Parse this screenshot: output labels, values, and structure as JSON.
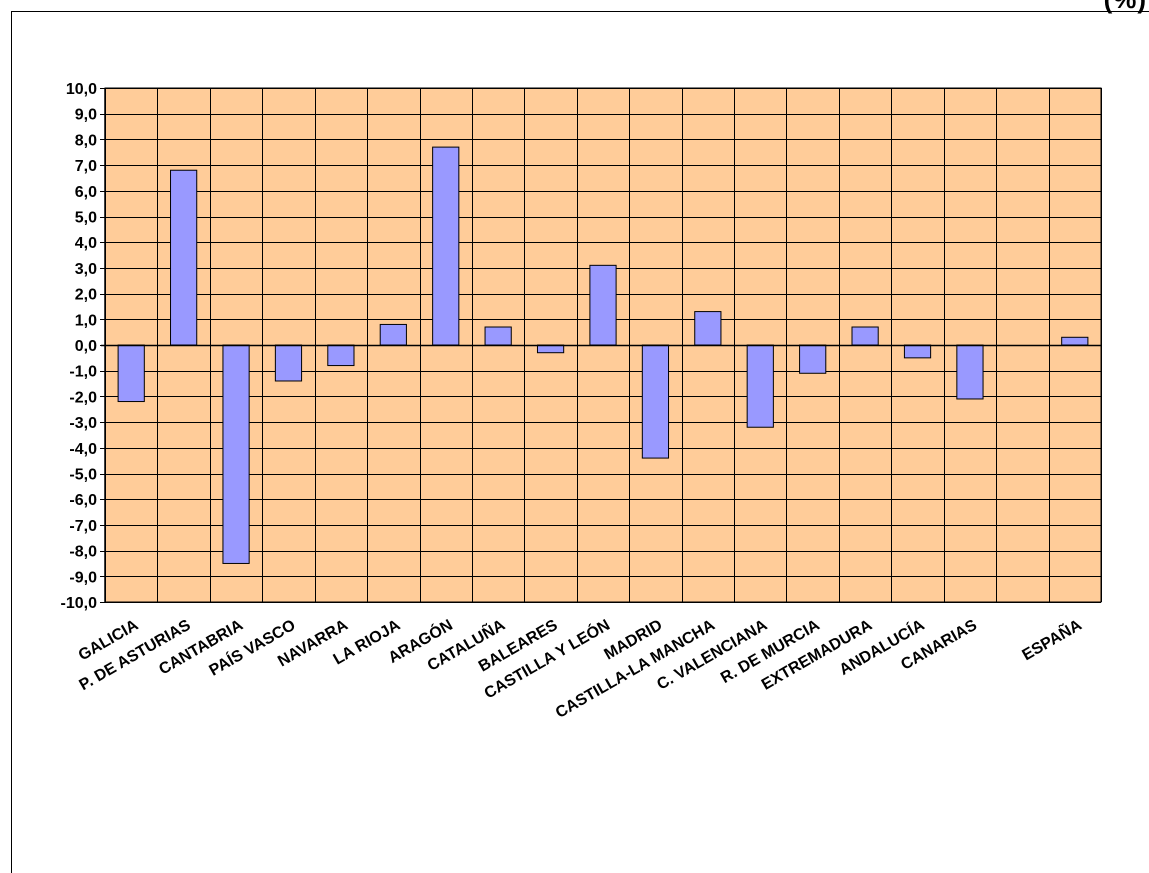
{
  "header": {
    "title_fragment": "(%)"
  },
  "colors": {
    "plot_background": "#FFCC99",
    "bar_fill": "#9999FF",
    "bar_stroke": "#000000",
    "grid": "#000000"
  },
  "chart_data": {
    "type": "bar",
    "title": "(%)",
    "xlabel": "",
    "ylabel": "",
    "ylim": [
      -10,
      10
    ],
    "ytick_step": 1,
    "ytick_labels": [
      "10,0",
      "9,0",
      "8,0",
      "7,0",
      "6,0",
      "5,0",
      "4,0",
      "3,0",
      "2,0",
      "1,0",
      "0,0",
      "-1,0",
      "-2,0",
      "-3,0",
      "-4,0",
      "-5,0",
      "-6,0",
      "-7,0",
      "-8,0",
      "-9,0",
      "-10,0"
    ],
    "grid": true,
    "legend": "none",
    "categories": [
      "GALICIA",
      "P. DE ASTURIAS",
      "CANTABRIA",
      "PAÍS VASCO",
      "NAVARRA",
      "LA RIOJA",
      "ARAGÓN",
      "CATALUÑA",
      "BALEARES",
      "CASTILLA Y LEÓN",
      "MADRID",
      "CASTILLA-LA MANCHA",
      "C. VALENCIANA",
      "R. DE MURCIA",
      "EXTREMADURA",
      "ANDALUCÍA",
      "CANARIAS",
      "",
      "ESPAÑA"
    ],
    "values": [
      -2.2,
      6.8,
      -8.5,
      -1.4,
      -0.8,
      0.8,
      7.7,
      0.7,
      -0.3,
      3.1,
      -4.4,
      1.3,
      -3.2,
      -1.1,
      0.7,
      -0.5,
      -2.1,
      null,
      0.3
    ]
  }
}
